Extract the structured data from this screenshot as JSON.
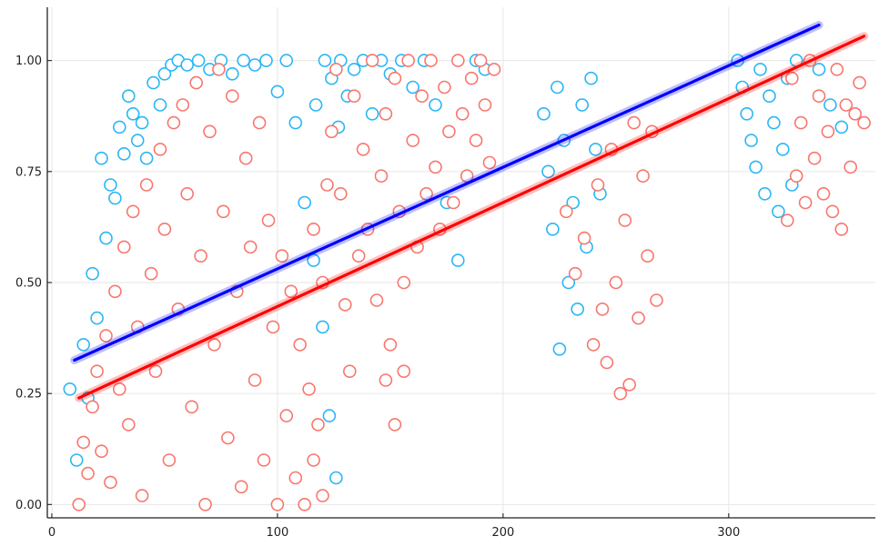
{
  "chart_data": {
    "type": "scatter",
    "title": "",
    "xlabel": "",
    "ylabel": "",
    "xlim": [
      -2,
      365
    ],
    "ylim": [
      -0.03,
      1.12
    ],
    "grid": true,
    "legend": "none",
    "x_ticks": [
      {
        "value": 0,
        "label": "0"
      },
      {
        "value": 100,
        "label": "100"
      },
      {
        "value": 200,
        "label": "200"
      },
      {
        "value": 300,
        "label": "300"
      }
    ],
    "y_ticks": [
      {
        "value": 0.0,
        "label": "0.00"
      },
      {
        "value": 0.25,
        "label": "0.25"
      },
      {
        "value": 0.5,
        "label": "0.50"
      },
      {
        "value": 0.75,
        "label": "0.75"
      },
      {
        "value": 1.0,
        "label": "1.00"
      }
    ],
    "series": [
      {
        "color": "#29b6f6",
        "marker": "open-circle",
        "points": [
          [
            8,
            0.26
          ],
          [
            11,
            0.1
          ],
          [
            14,
            0.36
          ],
          [
            16,
            0.24
          ],
          [
            18,
            0.52
          ],
          [
            20,
            0.42
          ],
          [
            22,
            0.78
          ],
          [
            24,
            0.6
          ],
          [
            26,
            0.72
          ],
          [
            28,
            0.69
          ],
          [
            30,
            0.85
          ],
          [
            32,
            0.79
          ],
          [
            34,
            0.92
          ],
          [
            36,
            0.88
          ],
          [
            38,
            0.82
          ],
          [
            40,
            0.86
          ],
          [
            42,
            0.78
          ],
          [
            45,
            0.95
          ],
          [
            48,
            0.9
          ],
          [
            50,
            0.97
          ],
          [
            53,
            0.99
          ],
          [
            56,
            1.0
          ],
          [
            60,
            0.99
          ],
          [
            65,
            1.0
          ],
          [
            70,
            0.98
          ],
          [
            75,
            1.0
          ],
          [
            80,
            0.97
          ],
          [
            85,
            1.0
          ],
          [
            90,
            0.99
          ],
          [
            95,
            1.0
          ],
          [
            100,
            0.93
          ],
          [
            104,
            1.0
          ],
          [
            108,
            0.86
          ],
          [
            112,
            0.68
          ],
          [
            116,
            0.55
          ],
          [
            120,
            0.4
          ],
          [
            123,
            0.2
          ],
          [
            126,
            0.06
          ],
          [
            117,
            0.9
          ],
          [
            121,
            1.0
          ],
          [
            124,
            0.96
          ],
          [
            127,
            0.85
          ],
          [
            128,
            1.0
          ],
          [
            131,
            0.92
          ],
          [
            134,
            0.98
          ],
          [
            138,
            1.0
          ],
          [
            142,
            0.88
          ],
          [
            146,
            1.0
          ],
          [
            150,
            0.97
          ],
          [
            155,
            1.0
          ],
          [
            160,
            0.94
          ],
          [
            165,
            1.0
          ],
          [
            170,
            0.9
          ],
          [
            175,
            0.68
          ],
          [
            180,
            0.55
          ],
          [
            188,
            1.0
          ],
          [
            192,
            0.98
          ],
          [
            218,
            0.88
          ],
          [
            220,
            0.75
          ],
          [
            222,
            0.62
          ],
          [
            224,
            0.94
          ],
          [
            225,
            0.35
          ],
          [
            227,
            0.82
          ],
          [
            229,
            0.5
          ],
          [
            231,
            0.68
          ],
          [
            233,
            0.44
          ],
          [
            235,
            0.9
          ],
          [
            237,
            0.58
          ],
          [
            239,
            0.96
          ],
          [
            241,
            0.8
          ],
          [
            243,
            0.7
          ],
          [
            304,
            1.0
          ],
          [
            306,
            0.94
          ],
          [
            308,
            0.88
          ],
          [
            310,
            0.82
          ],
          [
            312,
            0.76
          ],
          [
            314,
            0.98
          ],
          [
            316,
            0.7
          ],
          [
            318,
            0.92
          ],
          [
            320,
            0.86
          ],
          [
            322,
            0.66
          ],
          [
            324,
            0.8
          ],
          [
            326,
            0.96
          ],
          [
            328,
            0.72
          ],
          [
            330,
            1.0
          ],
          [
            340,
            0.98
          ],
          [
            345,
            0.9
          ],
          [
            350,
            0.85
          ]
        ]
      },
      {
        "color": "#f8766d",
        "marker": "open-circle",
        "points": [
          [
            12,
            0.0
          ],
          [
            14,
            0.14
          ],
          [
            16,
            0.07
          ],
          [
            18,
            0.22
          ],
          [
            20,
            0.3
          ],
          [
            22,
            0.12
          ],
          [
            24,
            0.38
          ],
          [
            26,
            0.05
          ],
          [
            28,
            0.48
          ],
          [
            30,
            0.26
          ],
          [
            32,
            0.58
          ],
          [
            34,
            0.18
          ],
          [
            36,
            0.66
          ],
          [
            38,
            0.4
          ],
          [
            40,
            0.02
          ],
          [
            42,
            0.72
          ],
          [
            44,
            0.52
          ],
          [
            46,
            0.3
          ],
          [
            48,
            0.8
          ],
          [
            50,
            0.62
          ],
          [
            52,
            0.1
          ],
          [
            54,
            0.86
          ],
          [
            56,
            0.44
          ],
          [
            58,
            0.9
          ],
          [
            60,
            0.7
          ],
          [
            62,
            0.22
          ],
          [
            64,
            0.95
          ],
          [
            66,
            0.56
          ],
          [
            68,
            0.0
          ],
          [
            70,
            0.84
          ],
          [
            72,
            0.36
          ],
          [
            74,
            0.98
          ],
          [
            76,
            0.66
          ],
          [
            78,
            0.15
          ],
          [
            80,
            0.92
          ],
          [
            82,
            0.48
          ],
          [
            84,
            0.04
          ],
          [
            86,
            0.78
          ],
          [
            88,
            0.58
          ],
          [
            90,
            0.28
          ],
          [
            92,
            0.86
          ],
          [
            94,
            0.1
          ],
          [
            96,
            0.64
          ],
          [
            98,
            0.4
          ],
          [
            100,
            0.0
          ],
          [
            102,
            0.56
          ],
          [
            104,
            0.2
          ],
          [
            106,
            0.48
          ],
          [
            108,
            0.06
          ],
          [
            110,
            0.36
          ],
          [
            112,
            0.0
          ],
          [
            114,
            0.26
          ],
          [
            116,
            0.1
          ],
          [
            118,
            0.18
          ],
          [
            120,
            0.02
          ],
          [
            116,
            0.62
          ],
          [
            120,
            0.5
          ],
          [
            122,
            0.72
          ],
          [
            124,
            0.84
          ],
          [
            126,
            0.98
          ],
          [
            128,
            0.7
          ],
          [
            130,
            0.45
          ],
          [
            132,
            0.3
          ],
          [
            134,
            0.92
          ],
          [
            136,
            0.56
          ],
          [
            138,
            0.8
          ],
          [
            140,
            0.62
          ],
          [
            142,
            1.0
          ],
          [
            144,
            0.46
          ],
          [
            146,
            0.74
          ],
          [
            148,
            0.88
          ],
          [
            150,
            0.36
          ],
          [
            152,
            0.96
          ],
          [
            154,
            0.66
          ],
          [
            156,
            0.5
          ],
          [
            158,
            1.0
          ],
          [
            160,
            0.82
          ],
          [
            162,
            0.58
          ],
          [
            164,
            0.92
          ],
          [
            166,
            0.7
          ],
          [
            168,
            1.0
          ],
          [
            170,
            0.76
          ],
          [
            172,
            0.62
          ],
          [
            174,
            0.94
          ],
          [
            176,
            0.84
          ],
          [
            178,
            0.68
          ],
          [
            180,
            1.0
          ],
          [
            182,
            0.88
          ],
          [
            184,
            0.74
          ],
          [
            186,
            0.96
          ],
          [
            188,
            0.82
          ],
          [
            190,
            1.0
          ],
          [
            192,
            0.9
          ],
          [
            194,
            0.77
          ],
          [
            196,
            0.98
          ],
          [
            148,
            0.28
          ],
          [
            152,
            0.18
          ],
          [
            156,
            0.3
          ],
          [
            228,
            0.66
          ],
          [
            232,
            0.52
          ],
          [
            236,
            0.6
          ],
          [
            240,
            0.36
          ],
          [
            242,
            0.72
          ],
          [
            244,
            0.44
          ],
          [
            246,
            0.32
          ],
          [
            248,
            0.8
          ],
          [
            250,
            0.5
          ],
          [
            252,
            0.25
          ],
          [
            254,
            0.64
          ],
          [
            256,
            0.27
          ],
          [
            258,
            0.86
          ],
          [
            260,
            0.42
          ],
          [
            262,
            0.74
          ],
          [
            264,
            0.56
          ],
          [
            266,
            0.84
          ],
          [
            268,
            0.46
          ],
          [
            326,
            0.64
          ],
          [
            328,
            0.96
          ],
          [
            330,
            0.74
          ],
          [
            332,
            0.86
          ],
          [
            334,
            0.68
          ],
          [
            336,
            1.0
          ],
          [
            338,
            0.78
          ],
          [
            340,
            0.92
          ],
          [
            342,
            0.7
          ],
          [
            344,
            0.84
          ],
          [
            346,
            0.66
          ],
          [
            348,
            0.98
          ],
          [
            350,
            0.62
          ],
          [
            352,
            0.9
          ],
          [
            354,
            0.76
          ],
          [
            356,
            0.88
          ],
          [
            358,
            0.95
          ],
          [
            360,
            0.86
          ]
        ]
      }
    ],
    "fit_lines": [
      {
        "color": "#0000ff",
        "x": [
          10,
          340
        ],
        "y": [
          0.325,
          1.08
        ]
      },
      {
        "color": "#ff0000",
        "x": [
          12,
          360
        ],
        "y": [
          0.24,
          1.055
        ]
      }
    ]
  }
}
